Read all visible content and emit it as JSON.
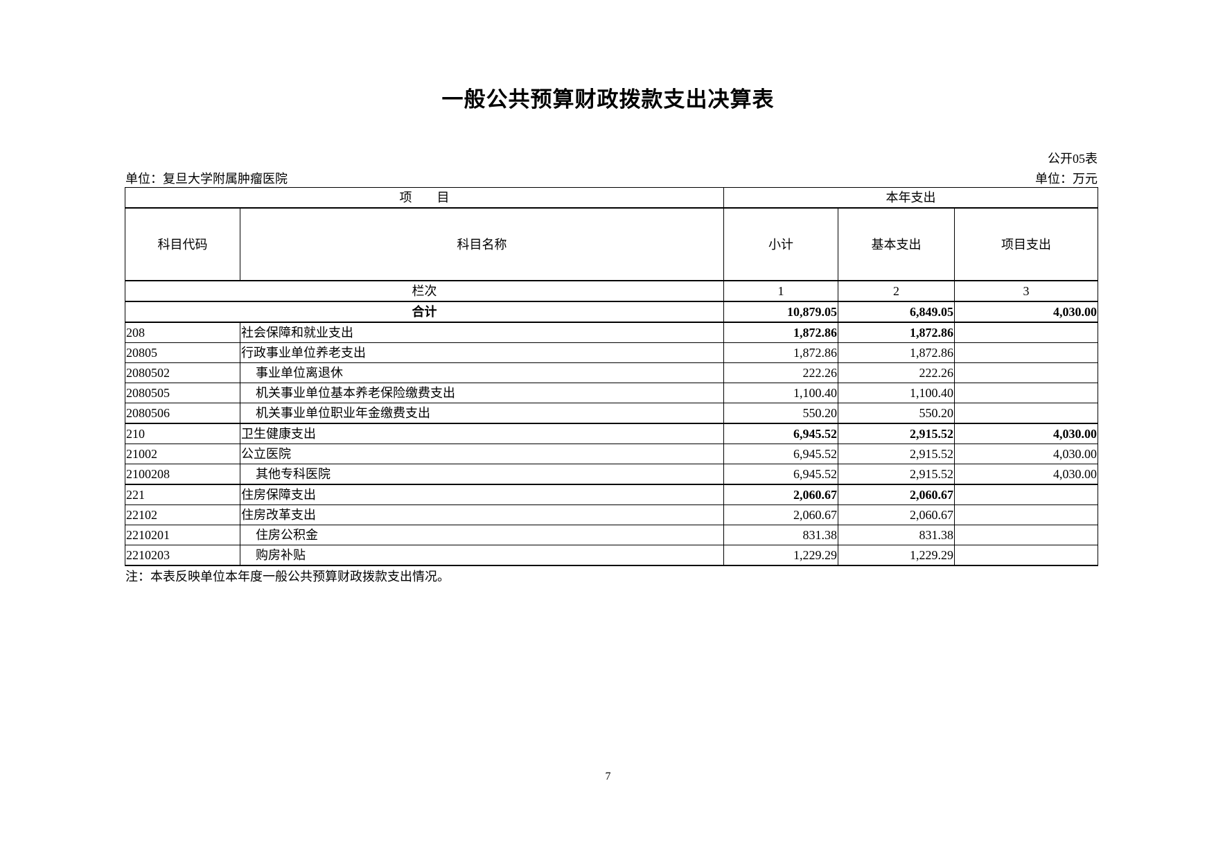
{
  "title": "一般公共预算财政拨款支出决算表",
  "form_no": "公开05表",
  "unit_left": "单位：复旦大学附属肿瘤医院",
  "unit_right": "单位：万元",
  "header": {
    "item": "项　　目",
    "current_year": "本年支出",
    "code": "科目代码",
    "name": "科目名称",
    "subtotal": "小计",
    "basic": "基本支出",
    "project": "项目支出",
    "column_label": "栏次",
    "col1": "1",
    "col2": "2",
    "col3": "3"
  },
  "total": {
    "label": "合计",
    "subtotal": "10,879.05",
    "basic": "6,849.05",
    "project": "4,030.00"
  },
  "rows": [
    {
      "code": "208",
      "name": "社会保障和就业支出",
      "subtotal": "1,872.86",
      "basic": "1,872.86",
      "project": "",
      "level": 1
    },
    {
      "code": "20805",
      "name": "行政事业单位养老支出",
      "subtotal": "1,872.86",
      "basic": "1,872.86",
      "project": "",
      "level": 2
    },
    {
      "code": "2080502",
      "name": "事业单位离退休",
      "subtotal": "222.26",
      "basic": "222.26",
      "project": "",
      "level": 3
    },
    {
      "code": "2080505",
      "name": "机关事业单位基本养老保险缴费支出",
      "subtotal": "1,100.40",
      "basic": "1,100.40",
      "project": "",
      "level": 3
    },
    {
      "code": "2080506",
      "name": "机关事业单位职业年金缴费支出",
      "subtotal": "550.20",
      "basic": "550.20",
      "project": "",
      "level": 3
    },
    {
      "code": "210",
      "name": "卫生健康支出",
      "subtotal": "6,945.52",
      "basic": "2,915.52",
      "project": "4,030.00",
      "level": 1
    },
    {
      "code": "21002",
      "name": "公立医院",
      "subtotal": "6,945.52",
      "basic": "2,915.52",
      "project": "4,030.00",
      "level": 2
    },
    {
      "code": "2100208",
      "name": "其他专科医院",
      "subtotal": "6,945.52",
      "basic": "2,915.52",
      "project": "4,030.00",
      "level": 3
    },
    {
      "code": "221",
      "name": "住房保障支出",
      "subtotal": "2,060.67",
      "basic": "2,060.67",
      "project": "",
      "level": 1
    },
    {
      "code": "22102",
      "name": "住房改革支出",
      "subtotal": "2,060.67",
      "basic": "2,060.67",
      "project": "",
      "level": 2
    },
    {
      "code": "2210201",
      "name": "住房公积金",
      "subtotal": "831.38",
      "basic": "831.38",
      "project": "",
      "level": 3
    },
    {
      "code": "2210203",
      "name": "购房补贴",
      "subtotal": "1,229.29",
      "basic": "1,229.29",
      "project": "",
      "level": 3
    }
  ],
  "note": "注：本表反映单位本年度一般公共预算财政拨款支出情况。",
  "page_number": "7"
}
